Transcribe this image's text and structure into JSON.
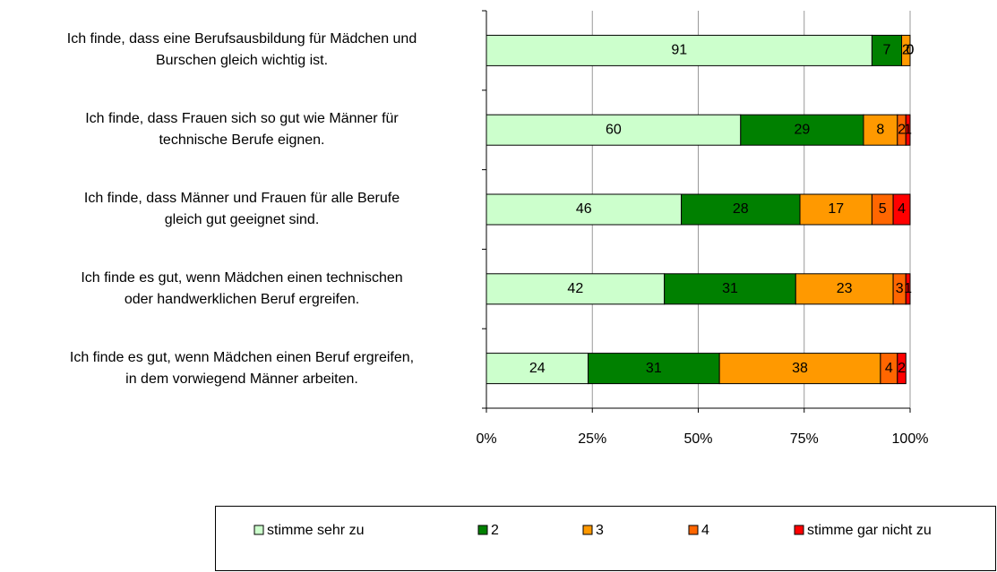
{
  "chart_data": {
    "type": "stacked_barh",
    "categories": [
      "Ich finde, dass eine Berufsausbildung für Mädchen und\nBurschen gleich wichtig ist.",
      "Ich finde, dass Frauen sich so gut wie Männer für\ntechnische Berufe eignen.",
      "Ich finde, dass Männer und Frauen für alle Berufe\ngleich gut geeignet sind.",
      "Ich finde es gut, wenn Mädchen einen technischen\noder handwerklichen Beruf ergreifen.",
      "Ich finde es gut, wenn Mädchen einen Beruf ergreifen,\nin dem vorwiegend Männer arbeiten."
    ],
    "series": [
      {
        "name": "stimme sehr zu",
        "color": "#ccffcc",
        "values": [
          91,
          60,
          46,
          42,
          24
        ]
      },
      {
        "name": "2",
        "color": "#008000",
        "values": [
          7,
          29,
          28,
          31,
          31
        ]
      },
      {
        "name": "3",
        "color": "#ff9900",
        "values": [
          2,
          8,
          17,
          23,
          38
        ]
      },
      {
        "name": "4",
        "color": "#ff6600",
        "values": [
          0,
          2,
          5,
          3,
          4
        ]
      },
      {
        "name": "stimme gar nicht zu",
        "color": "#ff0000",
        "values": [
          0,
          1,
          4,
          1,
          2
        ]
      }
    ],
    "xlim": [
      0,
      100
    ],
    "xticks": [
      {
        "value": 0,
        "label": "0%"
      },
      {
        "value": 25,
        "label": "25%"
      },
      {
        "value": 50,
        "label": "50%"
      },
      {
        "value": 75,
        "label": "75%"
      },
      {
        "value": 100,
        "label": "100%"
      }
    ],
    "grid": true,
    "legend": "bottom"
  }
}
